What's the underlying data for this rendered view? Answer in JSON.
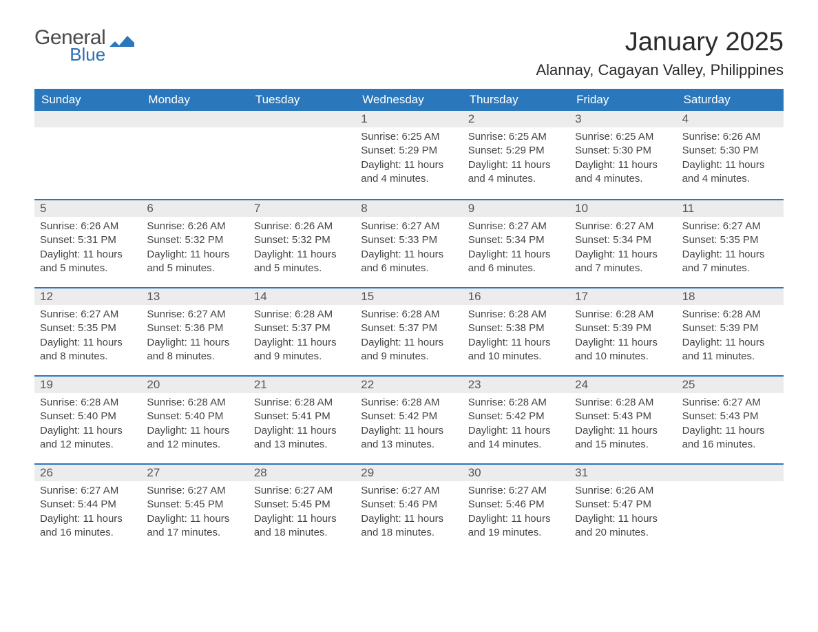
{
  "brand": {
    "word1": "General",
    "word2": "Blue",
    "flag_color": "#2a77bb"
  },
  "title": "January 2025",
  "location": "Alannay, Cagayan Valley, Philippines",
  "colors": {
    "header_bg": "#2a77bb",
    "header_text": "#ffffff",
    "daynum_bg": "#ececec",
    "row_divider": "#2a77bb",
    "body_text": "#444444"
  },
  "typography": {
    "title_fontsize_pt": 28,
    "location_fontsize_pt": 16,
    "dow_fontsize_pt": 13,
    "cell_fontsize_pt": 11
  },
  "days_of_week": [
    "Sunday",
    "Monday",
    "Tuesday",
    "Wednesday",
    "Thursday",
    "Friday",
    "Saturday"
  ],
  "weeks": [
    [
      {
        "num": "",
        "sunrise": "",
        "sunset": "",
        "daylight": ""
      },
      {
        "num": "",
        "sunrise": "",
        "sunset": "",
        "daylight": ""
      },
      {
        "num": "",
        "sunrise": "",
        "sunset": "",
        "daylight": ""
      },
      {
        "num": "1",
        "sunrise": "Sunrise: 6:25 AM",
        "sunset": "Sunset: 5:29 PM",
        "daylight": "Daylight: 11 hours and 4 minutes."
      },
      {
        "num": "2",
        "sunrise": "Sunrise: 6:25 AM",
        "sunset": "Sunset: 5:29 PM",
        "daylight": "Daylight: 11 hours and 4 minutes."
      },
      {
        "num": "3",
        "sunrise": "Sunrise: 6:25 AM",
        "sunset": "Sunset: 5:30 PM",
        "daylight": "Daylight: 11 hours and 4 minutes."
      },
      {
        "num": "4",
        "sunrise": "Sunrise: 6:26 AM",
        "sunset": "Sunset: 5:30 PM",
        "daylight": "Daylight: 11 hours and 4 minutes."
      }
    ],
    [
      {
        "num": "5",
        "sunrise": "Sunrise: 6:26 AM",
        "sunset": "Sunset: 5:31 PM",
        "daylight": "Daylight: 11 hours and 5 minutes."
      },
      {
        "num": "6",
        "sunrise": "Sunrise: 6:26 AM",
        "sunset": "Sunset: 5:32 PM",
        "daylight": "Daylight: 11 hours and 5 minutes."
      },
      {
        "num": "7",
        "sunrise": "Sunrise: 6:26 AM",
        "sunset": "Sunset: 5:32 PM",
        "daylight": "Daylight: 11 hours and 5 minutes."
      },
      {
        "num": "8",
        "sunrise": "Sunrise: 6:27 AM",
        "sunset": "Sunset: 5:33 PM",
        "daylight": "Daylight: 11 hours and 6 minutes."
      },
      {
        "num": "9",
        "sunrise": "Sunrise: 6:27 AM",
        "sunset": "Sunset: 5:34 PM",
        "daylight": "Daylight: 11 hours and 6 minutes."
      },
      {
        "num": "10",
        "sunrise": "Sunrise: 6:27 AM",
        "sunset": "Sunset: 5:34 PM",
        "daylight": "Daylight: 11 hours and 7 minutes."
      },
      {
        "num": "11",
        "sunrise": "Sunrise: 6:27 AM",
        "sunset": "Sunset: 5:35 PM",
        "daylight": "Daylight: 11 hours and 7 minutes."
      }
    ],
    [
      {
        "num": "12",
        "sunrise": "Sunrise: 6:27 AM",
        "sunset": "Sunset: 5:35 PM",
        "daylight": "Daylight: 11 hours and 8 minutes."
      },
      {
        "num": "13",
        "sunrise": "Sunrise: 6:27 AM",
        "sunset": "Sunset: 5:36 PM",
        "daylight": "Daylight: 11 hours and 8 minutes."
      },
      {
        "num": "14",
        "sunrise": "Sunrise: 6:28 AM",
        "sunset": "Sunset: 5:37 PM",
        "daylight": "Daylight: 11 hours and 9 minutes."
      },
      {
        "num": "15",
        "sunrise": "Sunrise: 6:28 AM",
        "sunset": "Sunset: 5:37 PM",
        "daylight": "Daylight: 11 hours and 9 minutes."
      },
      {
        "num": "16",
        "sunrise": "Sunrise: 6:28 AM",
        "sunset": "Sunset: 5:38 PM",
        "daylight": "Daylight: 11 hours and 10 minutes."
      },
      {
        "num": "17",
        "sunrise": "Sunrise: 6:28 AM",
        "sunset": "Sunset: 5:39 PM",
        "daylight": "Daylight: 11 hours and 10 minutes."
      },
      {
        "num": "18",
        "sunrise": "Sunrise: 6:28 AM",
        "sunset": "Sunset: 5:39 PM",
        "daylight": "Daylight: 11 hours and 11 minutes."
      }
    ],
    [
      {
        "num": "19",
        "sunrise": "Sunrise: 6:28 AM",
        "sunset": "Sunset: 5:40 PM",
        "daylight": "Daylight: 11 hours and 12 minutes."
      },
      {
        "num": "20",
        "sunrise": "Sunrise: 6:28 AM",
        "sunset": "Sunset: 5:40 PM",
        "daylight": "Daylight: 11 hours and 12 minutes."
      },
      {
        "num": "21",
        "sunrise": "Sunrise: 6:28 AM",
        "sunset": "Sunset: 5:41 PM",
        "daylight": "Daylight: 11 hours and 13 minutes."
      },
      {
        "num": "22",
        "sunrise": "Sunrise: 6:28 AM",
        "sunset": "Sunset: 5:42 PM",
        "daylight": "Daylight: 11 hours and 13 minutes."
      },
      {
        "num": "23",
        "sunrise": "Sunrise: 6:28 AM",
        "sunset": "Sunset: 5:42 PM",
        "daylight": "Daylight: 11 hours and 14 minutes."
      },
      {
        "num": "24",
        "sunrise": "Sunrise: 6:28 AM",
        "sunset": "Sunset: 5:43 PM",
        "daylight": "Daylight: 11 hours and 15 minutes."
      },
      {
        "num": "25",
        "sunrise": "Sunrise: 6:27 AM",
        "sunset": "Sunset: 5:43 PM",
        "daylight": "Daylight: 11 hours and 16 minutes."
      }
    ],
    [
      {
        "num": "26",
        "sunrise": "Sunrise: 6:27 AM",
        "sunset": "Sunset: 5:44 PM",
        "daylight": "Daylight: 11 hours and 16 minutes."
      },
      {
        "num": "27",
        "sunrise": "Sunrise: 6:27 AM",
        "sunset": "Sunset: 5:45 PM",
        "daylight": "Daylight: 11 hours and 17 minutes."
      },
      {
        "num": "28",
        "sunrise": "Sunrise: 6:27 AM",
        "sunset": "Sunset: 5:45 PM",
        "daylight": "Daylight: 11 hours and 18 minutes."
      },
      {
        "num": "29",
        "sunrise": "Sunrise: 6:27 AM",
        "sunset": "Sunset: 5:46 PM",
        "daylight": "Daylight: 11 hours and 18 minutes."
      },
      {
        "num": "30",
        "sunrise": "Sunrise: 6:27 AM",
        "sunset": "Sunset: 5:46 PM",
        "daylight": "Daylight: 11 hours and 19 minutes."
      },
      {
        "num": "31",
        "sunrise": "Sunrise: 6:26 AM",
        "sunset": "Sunset: 5:47 PM",
        "daylight": "Daylight: 11 hours and 20 minutes."
      },
      {
        "num": "",
        "sunrise": "",
        "sunset": "",
        "daylight": ""
      }
    ]
  ]
}
